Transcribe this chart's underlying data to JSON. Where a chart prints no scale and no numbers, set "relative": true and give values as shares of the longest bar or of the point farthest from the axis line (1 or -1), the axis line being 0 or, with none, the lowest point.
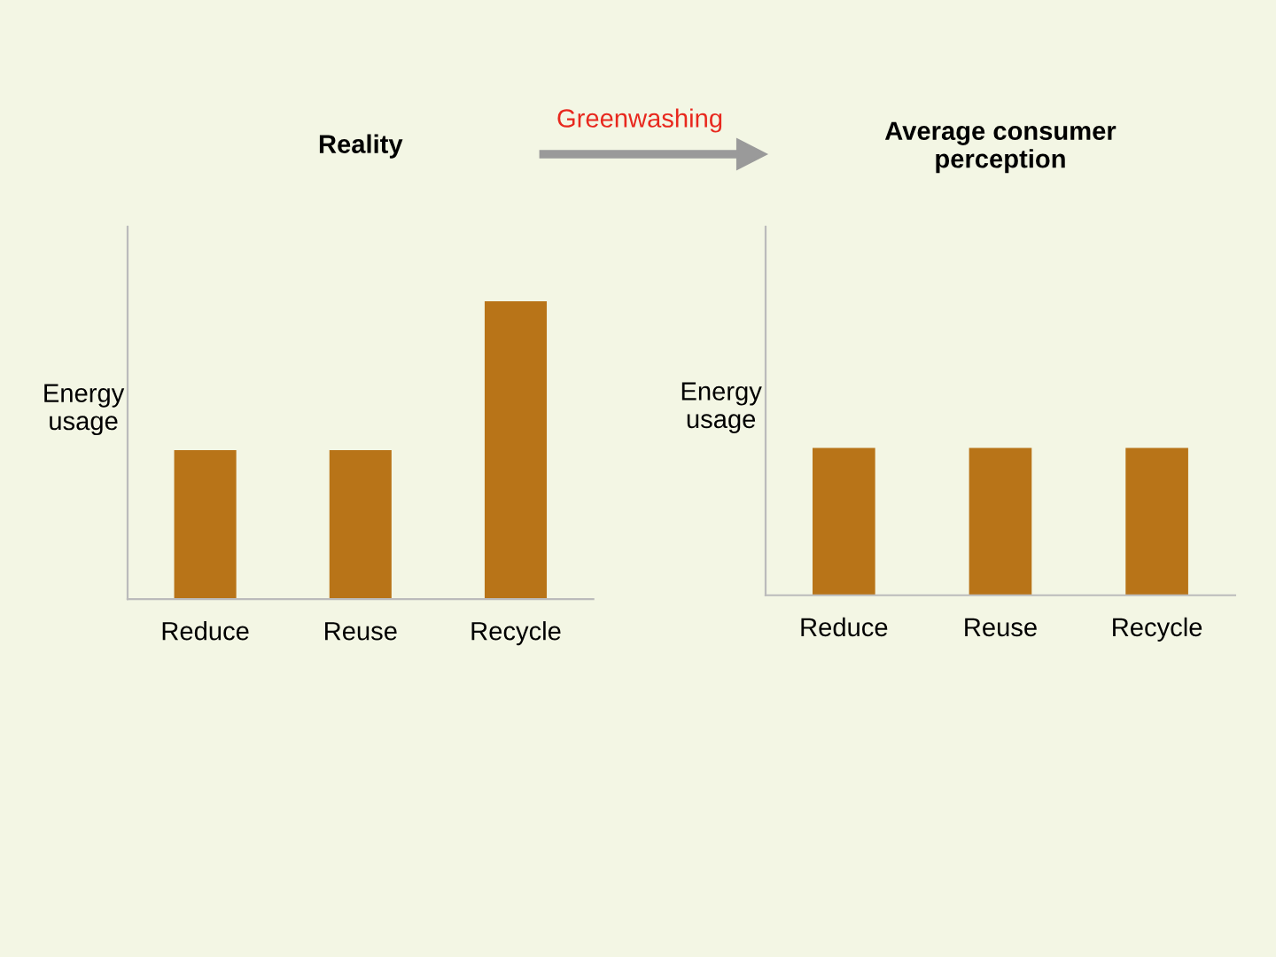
{
  "chart_data": [
    {
      "type": "bar",
      "title": "Reality",
      "ylabel": "Energy\nusage",
      "categories": [
        "Reduce",
        "Reuse",
        "Recycle"
      ],
      "values": [
        0.5,
        0.5,
        1
      ],
      "color": "#b87418",
      "relative": true,
      "annotations": [
        "Greenwashing"
      ]
    },
    {
      "type": "bar",
      "title": "Average consumer\nperception",
      "ylabel": "Energy\nusage",
      "categories": [
        "Reduce",
        "Reuse",
        "Recycle"
      ],
      "values": [
        1,
        1,
        1
      ],
      "color": "#b87418",
      "relative": true
    }
  ]
}
